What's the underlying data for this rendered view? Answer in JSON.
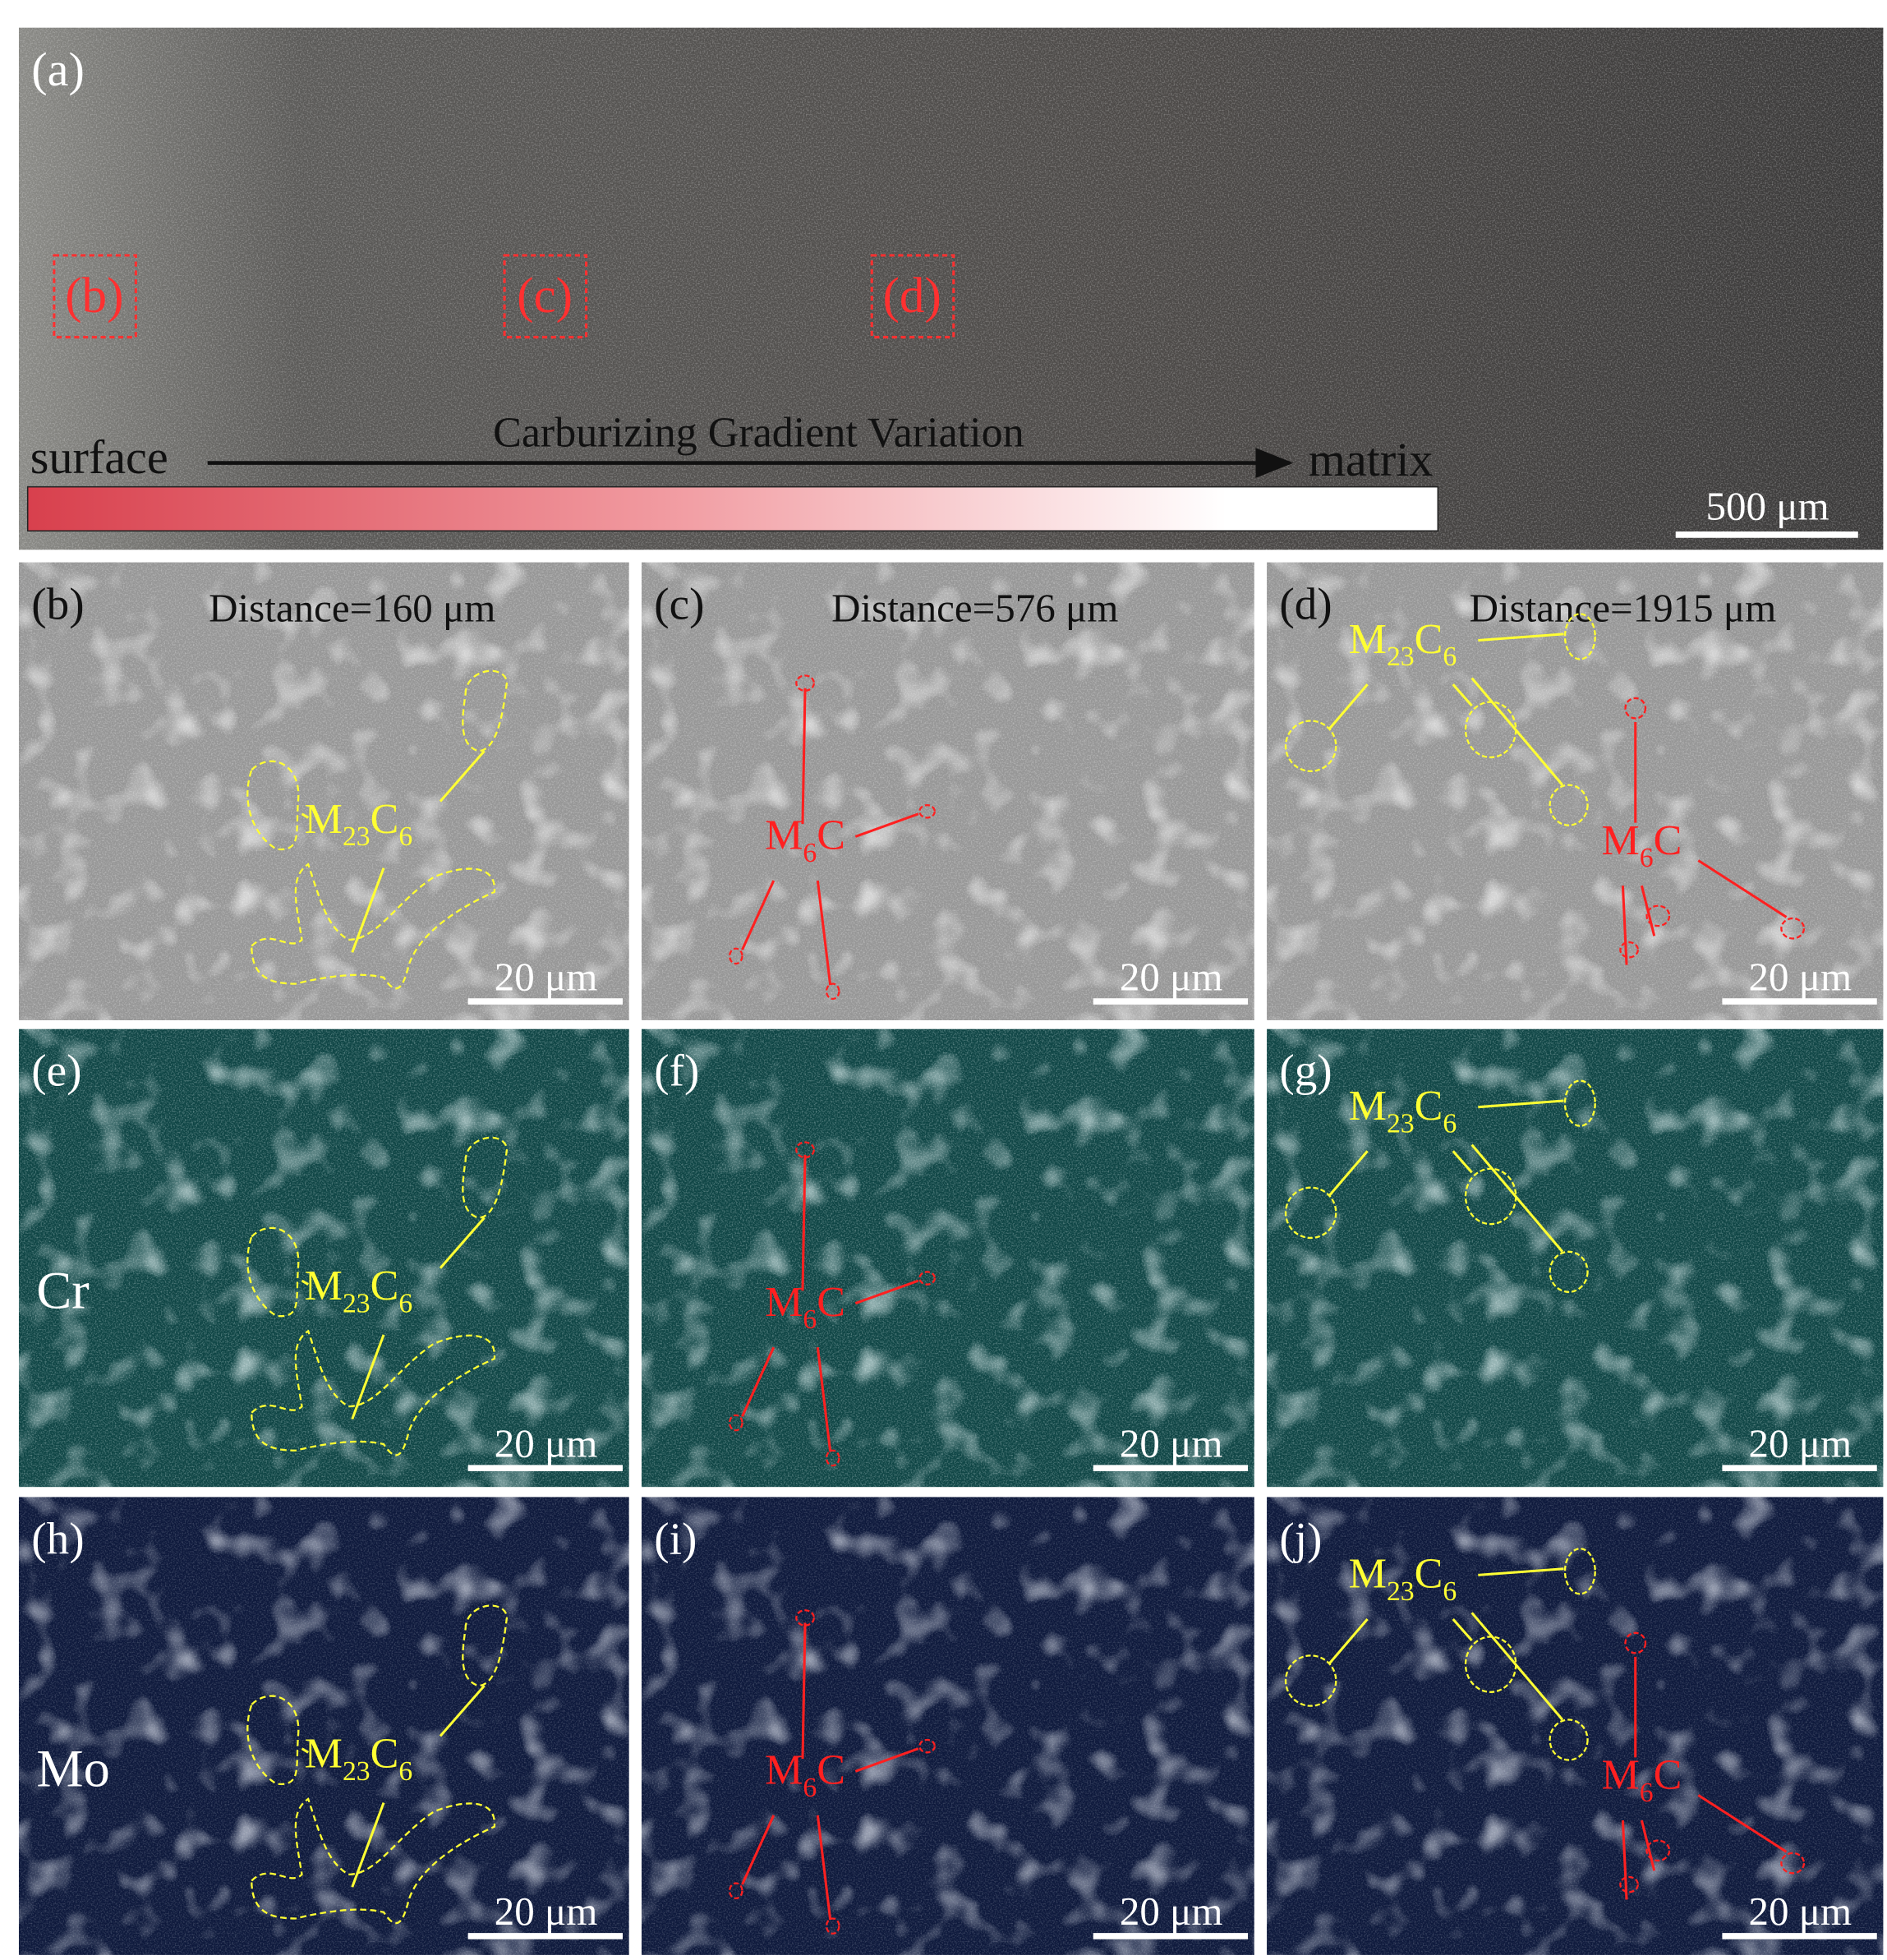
{
  "panel_a": {
    "label": "(a)",
    "boxes": [
      "(b)",
      "(c)",
      "(d)"
    ],
    "gradient_label": "Carburizing Gradient Variation",
    "start": "surface",
    "end": "matrix",
    "scale_bar": "500 μm"
  },
  "panels": [
    {
      "label": "(b)",
      "distance": "Distance=160 μm",
      "scale_bar": "20 μm",
      "annotations": [
        {
          "formula": [
            "M",
            "23",
            "C",
            "6"
          ],
          "color": "#ffff33"
        }
      ]
    },
    {
      "label": "(c)",
      "distance": "Distance=576 μm",
      "scale_bar": "20 μm",
      "annotations": [
        {
          "formula": [
            "M",
            "6",
            "C"
          ],
          "color": "#ff2020"
        }
      ]
    },
    {
      "label": "(d)",
      "distance": "Distance=1915 μm",
      "scale_bar": "20 μm",
      "annotations": [
        {
          "formula": [
            "M",
            "23",
            "C",
            "6"
          ],
          "color": "#ffff33"
        },
        {
          "formula": [
            "M",
            "6",
            "C"
          ],
          "color": "#ff2020"
        }
      ]
    },
    {
      "label": "(e)",
      "element": "Cr",
      "scale_bar": "20 μm",
      "annotations": [
        {
          "formula": [
            "M",
            "23",
            "C",
            "6"
          ],
          "color": "#ffff33"
        }
      ]
    },
    {
      "label": "(f)",
      "scale_bar": "20 μm",
      "annotations": [
        {
          "formula": [
            "M",
            "6",
            "C"
          ],
          "color": "#ff2020"
        }
      ]
    },
    {
      "label": "(g)",
      "scale_bar": "20 μm",
      "annotations": [
        {
          "formula": [
            "M",
            "23",
            "C",
            "6"
          ],
          "color": "#ffff33"
        }
      ]
    },
    {
      "label": "(h)",
      "element": "Mo",
      "scale_bar": "20 μm",
      "annotations": [
        {
          "formula": [
            "M",
            "23",
            "C",
            "6"
          ],
          "color": "#ffff33"
        }
      ]
    },
    {
      "label": "(i)",
      "scale_bar": "20 μm",
      "annotations": [
        {
          "formula": [
            "M",
            "6",
            "C"
          ],
          "color": "#ff2020"
        }
      ]
    },
    {
      "label": "(j)",
      "scale_bar": "20 μm",
      "annotations": [
        {
          "formula": [
            "M",
            "23",
            "C",
            "6"
          ],
          "color": "#ffff33"
        },
        {
          "formula": [
            "M",
            "6",
            "C"
          ],
          "color": "#ff2020"
        }
      ]
    }
  ]
}
